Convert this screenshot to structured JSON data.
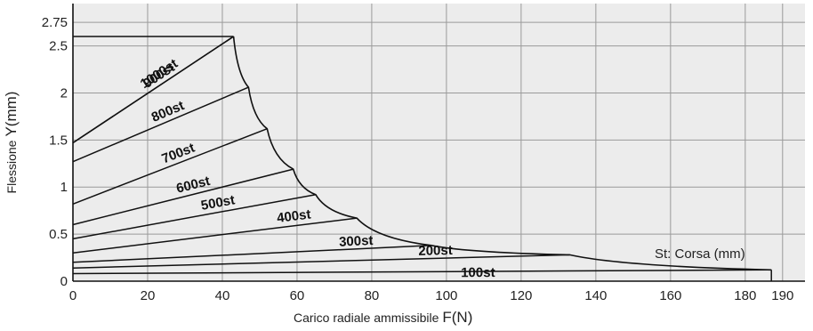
{
  "chart_data": {
    "type": "line",
    "title": "",
    "xlabel_prefix": "Carico radiale ammissibile",
    "xlabel_unit": "F(N)",
    "ylabel_prefix": "Flessione",
    "ylabel_unit": "Y(mm)",
    "xlim": [
      0,
      196
    ],
    "ylim": [
      0,
      2.95
    ],
    "x_ticks": [
      0,
      20,
      40,
      60,
      80,
      100,
      120,
      140,
      160,
      180,
      190
    ],
    "y_ticks": [
      0,
      0.5,
      1,
      1.5,
      2,
      2.5,
      2.75
    ],
    "y_tick_labels": [
      "0",
      "0.5",
      "1",
      "1.5",
      "2",
      "2.5",
      "2.75"
    ],
    "grid": true,
    "series": [
      {
        "name": "100st",
        "points": [
          [
            0,
            0.08
          ],
          [
            187,
            0.12
          ]
        ]
      },
      {
        "name": "200st",
        "points": [
          [
            0,
            0.14
          ],
          [
            133,
            0.28
          ]
        ]
      },
      {
        "name": "300st",
        "points": [
          [
            0,
            0.2
          ],
          [
            96,
            0.38
          ]
        ]
      },
      {
        "name": "400st",
        "points": [
          [
            0,
            0.3
          ],
          [
            76,
            0.67
          ]
        ]
      },
      {
        "name": "500st",
        "points": [
          [
            0,
            0.45
          ],
          [
            65,
            0.92
          ]
        ]
      },
      {
        "name": "600st",
        "points": [
          [
            0,
            0.6
          ],
          [
            59,
            1.19
          ]
        ]
      },
      {
        "name": "700st",
        "points": [
          [
            0,
            0.82
          ],
          [
            52,
            1.62
          ]
        ]
      },
      {
        "name": "800st",
        "points": [
          [
            0,
            1.27
          ],
          [
            47,
            2.06
          ]
        ]
      },
      {
        "name": "900st",
        "points": [
          [
            0,
            1.47
          ],
          [
            43,
            2.6
          ]
        ]
      },
      {
        "name": "1000st",
        "points": [
          [
            0,
            2.6
          ],
          [
            43,
            2.6
          ]
        ]
      }
    ],
    "envelope": [
      [
        43,
        2.6
      ],
      [
        47,
        2.06
      ],
      [
        52,
        1.62
      ],
      [
        59,
        1.19
      ],
      [
        65,
        0.92
      ],
      [
        76,
        0.67
      ],
      [
        96,
        0.38
      ],
      [
        133,
        0.28
      ],
      [
        187,
        0.12
      ]
    ],
    "annotation": "St: Corsa  (mm)"
  }
}
